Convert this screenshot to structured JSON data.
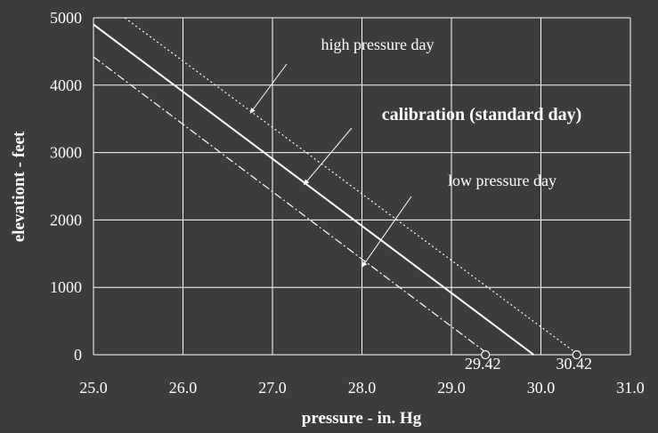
{
  "chart_data": {
    "type": "line",
    "title": "",
    "xlabel": "pressure - in. Hg",
    "ylabel": "elevationt - feet",
    "xlim": [
      25.0,
      31.0
    ],
    "ylim": [
      0,
      5000
    ],
    "xticks": [
      "25.0",
      "26.0",
      "27.0",
      "28.0",
      "29.0",
      "30.0",
      "31.0"
    ],
    "yticks": [
      "0",
      "1000",
      "2000",
      "3000",
      "4000",
      "5000"
    ],
    "grid": true,
    "legend": "none",
    "series": [
      {
        "name": "high pressure day",
        "style": "dotted",
        "points": [
          [
            25.35,
            5000
          ],
          [
            30.42,
            0
          ]
        ]
      },
      {
        "name": "calibration (standard day)",
        "style": "solid",
        "points": [
          [
            25.0,
            4900
          ],
          [
            29.92,
            0
          ]
        ]
      },
      {
        "name": "low pressure day",
        "style": "dashdot",
        "points": [
          [
            25.0,
            4420
          ],
          [
            29.42,
            0
          ]
        ]
      }
    ],
    "annotations": [
      {
        "text": "high pressure day",
        "bold": false,
        "points_to": [
          26.75,
          3580
        ]
      },
      {
        "text": "calibration (standard day)",
        "bold": true,
        "points_to": [
          27.35,
          2520
        ]
      },
      {
        "text": "low pressure day",
        "bold": false,
        "points_to": [
          28.0,
          1300
        ]
      }
    ],
    "markers": [
      {
        "label": "29.42",
        "x": 29.38,
        "y": 0
      },
      {
        "label": "30.42",
        "x": 30.4,
        "y": 0
      }
    ]
  }
}
